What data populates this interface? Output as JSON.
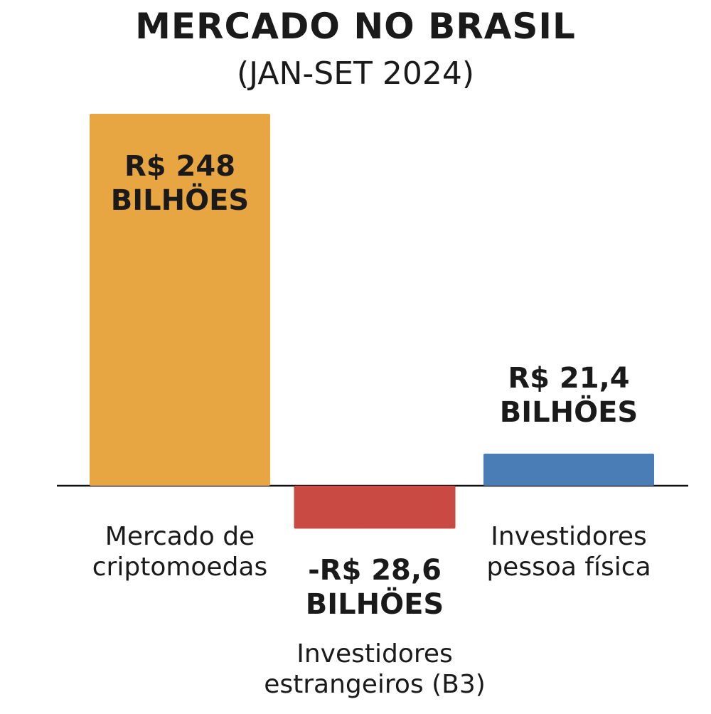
{
  "chart_data": {
    "type": "bar",
    "title": "MERCADO NO BRASIL",
    "subtitle": "(JAN-SET 2024)",
    "categories": [
      "Mercado de criptomoedas",
      "Investidores estrangeiros (B3)",
      "Investidores pessoa física"
    ],
    "values": [
      248,
      -28.6,
      21.4
    ],
    "value_labels": [
      "R$ 248 BILHÖES",
      "-R$ 28,6 BILHÖES",
      "R$ 21,4 BILHÖES"
    ],
    "colors": [
      "#e8a643",
      "#c94a43",
      "#4a7db5"
    ]
  }
}
